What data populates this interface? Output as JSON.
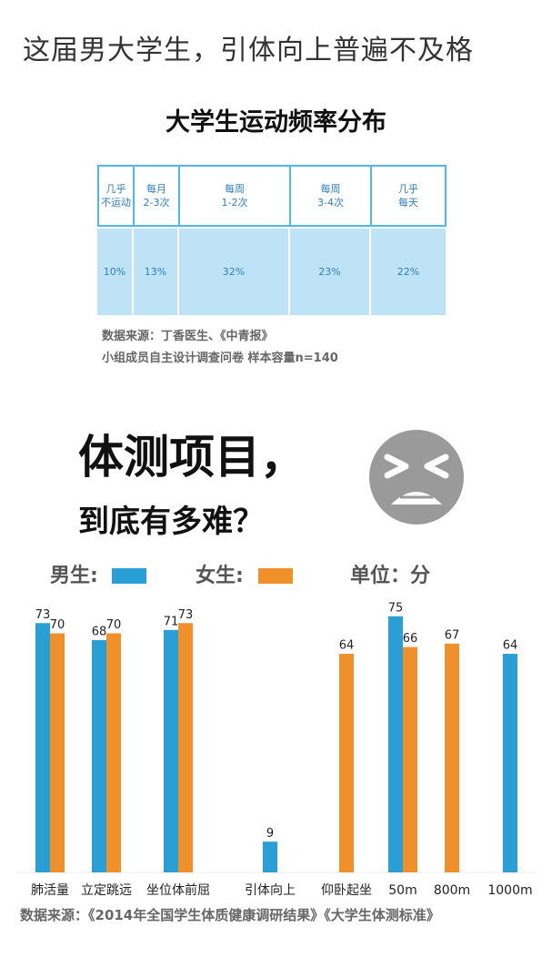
{
  "header": {
    "title": "这届男大学生，引体向上普遍不及格"
  },
  "table": {
    "title": "大学生运动频率分布",
    "columns": [
      "几乎\n不运动",
      "每月\n2-3次",
      "每周\n1-2次",
      "每周\n3-4次",
      "几乎\n每天"
    ],
    "rows": [
      [
        "10%",
        "13%",
        "32%",
        "23%",
        "22%"
      ]
    ]
  },
  "table_notes": [
    "数据来源：丁香医生、《中青报》",
    "小组成员自主设计调查问卷  样本容量n=140"
  ],
  "section": {
    "heading_lines": [
      "体测项目，",
      "到底有多难？"
    ]
  },
  "chart_data": {
    "type": "bar",
    "unit_label": "单位：分",
    "categories": [
      "肺活量",
      "立定跳远",
      "坐位体前屈",
      "引体向上",
      "仰卧起坐",
      "50m",
      "800m",
      "1000m"
    ],
    "series": [
      {
        "name": "男生:",
        "color": "#2a9fd6",
        "values": [
          73,
          68,
          71,
          9,
          null,
          75,
          null,
          64
        ]
      },
      {
        "name": "女生:",
        "color": "#f0902a",
        "values": [
          70,
          70,
          73,
          null,
          64,
          66,
          67,
          null
        ]
      }
    ],
    "source": "数据来源：《2014年全国学生体质健康调研结果》《大学生体测标准》"
  }
}
